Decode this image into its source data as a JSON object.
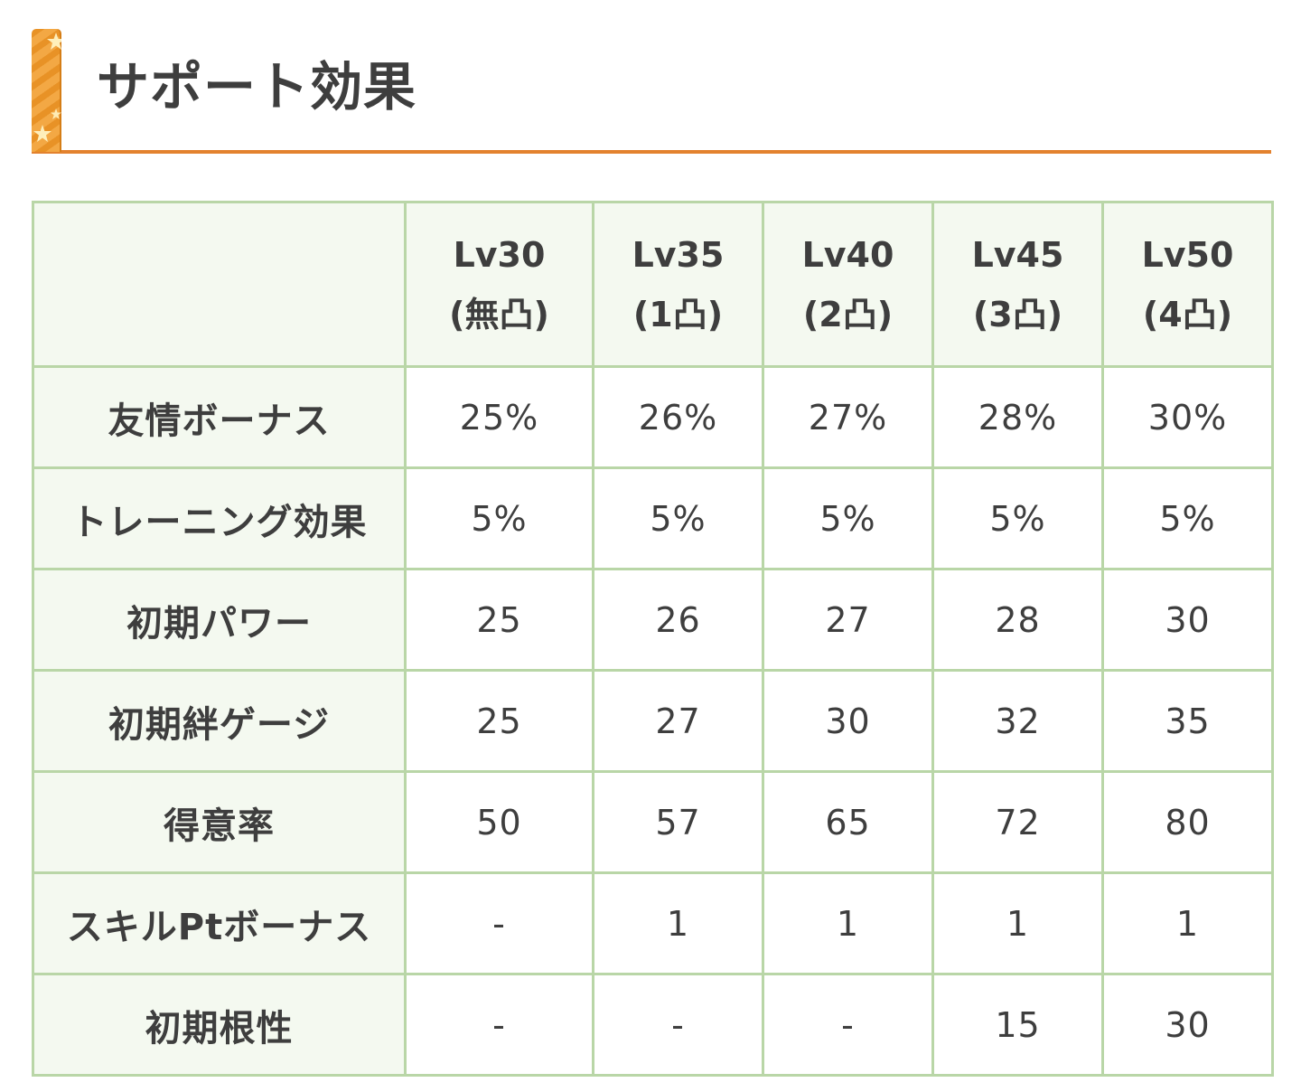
{
  "heading": {
    "title": "サポート効果",
    "accent_color": "#e3822e",
    "icon": "star-bar-icon"
  },
  "table": {
    "border_color": "#b9d6a7",
    "header_bg": "#f4f9f0",
    "columns": [
      {
        "level": "Lv30",
        "limit": "(無凸)"
      },
      {
        "level": "Lv35",
        "limit": "(1凸)"
      },
      {
        "level": "Lv40",
        "limit": "(2凸)"
      },
      {
        "level": "Lv45",
        "limit": "(3凸)"
      },
      {
        "level": "Lv50",
        "limit": "(4凸)"
      }
    ],
    "rows": [
      {
        "label": "友情ボーナス",
        "values": [
          "25%",
          "26%",
          "27%",
          "28%",
          "30%"
        ]
      },
      {
        "label": "トレーニング効果",
        "values": [
          "5%",
          "5%",
          "5%",
          "5%",
          "5%"
        ]
      },
      {
        "label": "初期パワー",
        "values": [
          "25",
          "26",
          "27",
          "28",
          "30"
        ]
      },
      {
        "label": "初期絆ゲージ",
        "values": [
          "25",
          "27",
          "30",
          "32",
          "35"
        ]
      },
      {
        "label": "得意率",
        "values": [
          "50",
          "57",
          "65",
          "72",
          "80"
        ]
      },
      {
        "label": "スキルPtボーナス",
        "values": [
          "-",
          "1",
          "1",
          "1",
          "1"
        ]
      },
      {
        "label": "初期根性",
        "values": [
          "-",
          "-",
          "-",
          "15",
          "30"
        ]
      }
    ]
  }
}
